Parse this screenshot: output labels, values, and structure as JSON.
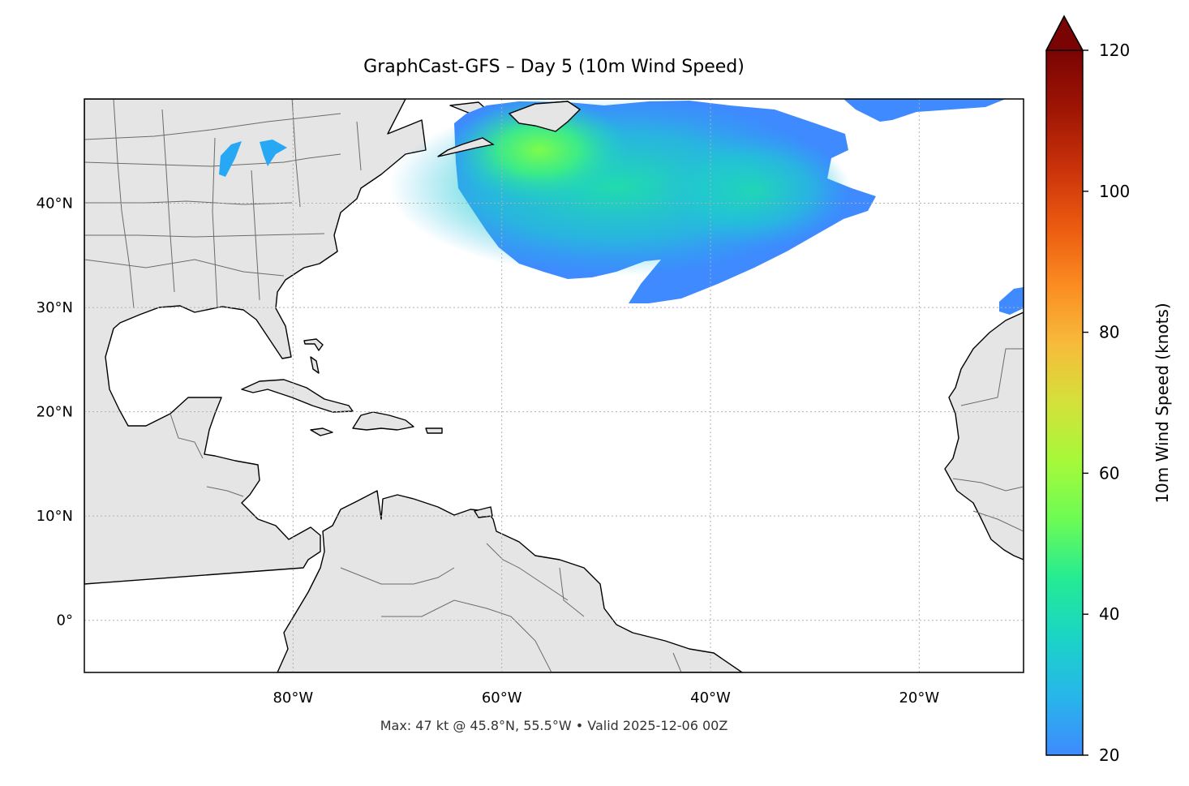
{
  "title": "GraphCast-GFS – Day 5 (10m Wind Speed)",
  "footer": "Max: 47 kt @ 45.8°N, 55.5°W • Valid 2025-12-06 00Z",
  "map": {
    "lon_range": [
      -100,
      -10
    ],
    "lat_range": [
      -5,
      50
    ],
    "lon_ticks": [
      {
        "value": -80,
        "label": "80°W"
      },
      {
        "value": -60,
        "label": "60°W"
      },
      {
        "value": -40,
        "label": "40°W"
      },
      {
        "value": -20,
        "label": "20°W"
      }
    ],
    "lat_ticks": [
      {
        "value": 40,
        "label": "40°N"
      },
      {
        "value": 30,
        "label": "30°N"
      },
      {
        "value": 20,
        "label": "20°N"
      },
      {
        "value": 10,
        "label": "10°N"
      },
      {
        "value": 0,
        "label": "0°"
      }
    ],
    "grid": true,
    "land_color": "#e5e5e5",
    "ocean_color": "#ffffff"
  },
  "colorbar": {
    "label": "10m Wind Speed (knots)",
    "range": [
      20,
      120
    ],
    "ticks": [
      {
        "value": 20,
        "label": "20"
      },
      {
        "value": 40,
        "label": "40"
      },
      {
        "value": 60,
        "label": "60"
      },
      {
        "value": 80,
        "label": "80"
      },
      {
        "value": 100,
        "label": "100"
      },
      {
        "value": 120,
        "label": "120"
      }
    ],
    "extend": "max",
    "colors": [
      "#3e8afe",
      "#27b6ea",
      "#1bd4c6",
      "#24eb94",
      "#6cfb55",
      "#a6f93a",
      "#d4e13a",
      "#f7bb3a",
      "#fb8c22",
      "#eb5a10",
      "#c9320a",
      "#9e1504",
      "#7a0403"
    ]
  },
  "chart_data": {
    "type": "heatmap",
    "title": "GraphCast-GFS – Day 5 (10m Wind Speed)",
    "variable": "10m Wind Speed (knots)",
    "value_range": [
      20,
      120
    ],
    "max": {
      "value": 47,
      "lat": 45.8,
      "lon": -55.5,
      "label": "Max: 47 kt @ 45.8°N, 55.5°W"
    },
    "valid_time": "2025-12-06 00Z",
    "wind_regions": [
      {
        "region": "North Atlantic storm",
        "lat_range": [
          30.5,
          50
        ],
        "lon_range": [
          -66,
          -30
        ],
        "peak_kt": 47
      },
      {
        "region": "Far NE Atlantic band",
        "lat_range": [
          48,
          50
        ],
        "lon_range": [
          -35,
          -11
        ],
        "peak_kt": 24
      },
      {
        "region": "Near Canary Islands",
        "lat_range": [
          30.5,
          32
        ],
        "lon_range": [
          -13.5,
          -11
        ],
        "peak_kt": 24
      },
      {
        "region": "Great Lakes",
        "lat_range": [
          43,
          46
        ],
        "lon_range": [
          -88,
          -82
        ],
        "peak_kt": 25
      }
    ]
  }
}
